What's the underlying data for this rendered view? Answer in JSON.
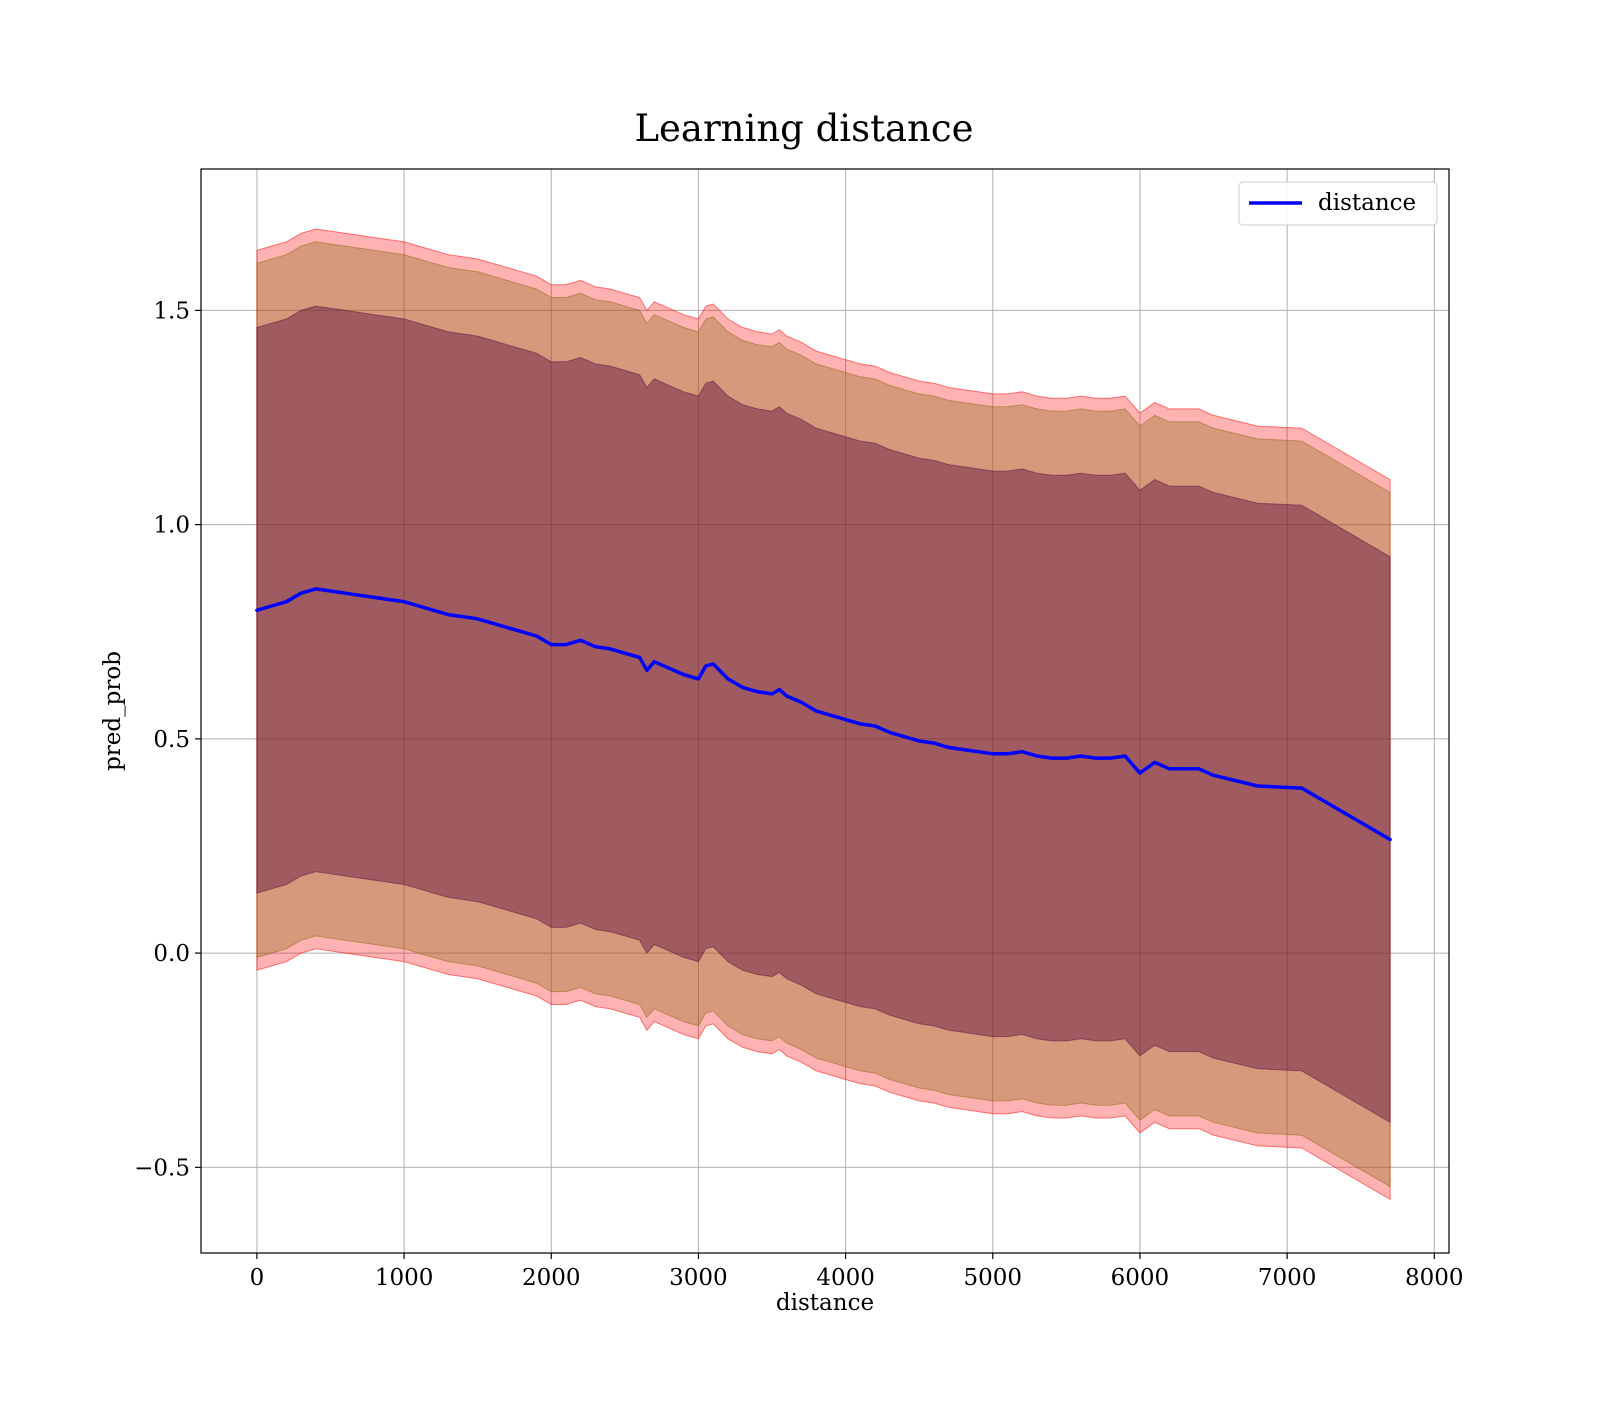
{
  "chart_data": {
    "type": "line",
    "title": "Learning distance",
    "xlabel": "distance",
    "ylabel": "pred_prob",
    "xlim": [
      -380,
      8100
    ],
    "ylim": [
      -0.7,
      1.83
    ],
    "xticks": [
      0,
      1000,
      2000,
      3000,
      4000,
      5000,
      6000,
      7000,
      8000
    ],
    "xtick_labels": [
      "0",
      "1000",
      "2000",
      "3000",
      "4000",
      "5000",
      "6000",
      "7000",
      "8000"
    ],
    "yticks": [
      -0.5,
      0.0,
      0.5,
      1.0,
      1.5
    ],
    "ytick_labels": [
      "−0.5",
      "0.0",
      "0.5",
      "1.0",
      "1.5"
    ],
    "grid": true,
    "legend_position": "top-right",
    "colors": {
      "line": "#0000ff",
      "outer_band": "#ff0000",
      "middle_band": "#8b6914",
      "inner_band": "#5b1040"
    },
    "series": [
      {
        "name": "distance",
        "x": [
          0,
          100,
          200,
          300,
          400,
          500,
          600,
          700,
          800,
          900,
          1000,
          1100,
          1200,
          1300,
          1400,
          1500,
          1600,
          1700,
          1800,
          1900,
          2000,
          2100,
          2200,
          2300,
          2400,
          2500,
          2600,
          2650,
          2700,
          2800,
          2900,
          3000,
          3050,
          3100,
          3200,
          3300,
          3400,
          3500,
          3550,
          3600,
          3700,
          3800,
          3900,
          4000,
          4100,
          4200,
          4300,
          4400,
          4500,
          4600,
          4700,
          4800,
          4900,
          5000,
          5100,
          5200,
          5300,
          5400,
          5500,
          5600,
          5700,
          5800,
          5900,
          6000,
          6100,
          6200,
          6400,
          6500,
          6800,
          7100,
          7700
        ],
        "y": [
          0.8,
          0.81,
          0.82,
          0.84,
          0.85,
          0.845,
          0.84,
          0.835,
          0.83,
          0.825,
          0.82,
          0.81,
          0.8,
          0.79,
          0.785,
          0.78,
          0.77,
          0.76,
          0.75,
          0.74,
          0.72,
          0.72,
          0.73,
          0.715,
          0.71,
          0.7,
          0.69,
          0.66,
          0.68,
          0.665,
          0.65,
          0.64,
          0.67,
          0.675,
          0.64,
          0.62,
          0.61,
          0.605,
          0.615,
          0.6,
          0.585,
          0.565,
          0.555,
          0.545,
          0.535,
          0.53,
          0.515,
          0.505,
          0.495,
          0.49,
          0.48,
          0.475,
          0.47,
          0.465,
          0.465,
          0.47,
          0.46,
          0.455,
          0.455,
          0.46,
          0.455,
          0.455,
          0.46,
          0.42,
          0.445,
          0.43,
          0.43,
          0.415,
          0.39,
          0.385,
          0.265
        ]
      }
    ],
    "bands": [
      {
        "half_width_start": 0.84,
        "half_width_end": 0.84
      },
      {
        "half_width_start": 0.81,
        "half_width_end": 0.81
      },
      {
        "half_width_start": 0.66,
        "half_width_end": 0.66
      }
    ]
  }
}
